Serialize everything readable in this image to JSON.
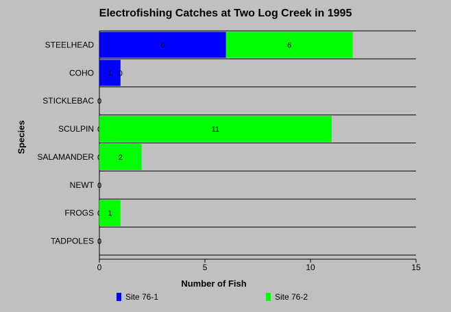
{
  "chart_data": {
    "type": "bar",
    "orientation": "horizontal",
    "stacked": true,
    "title": "Electrofishing Catches at Two Log Creek in 1995",
    "xlabel": "Number of Fish",
    "ylabel": "Species",
    "categories": [
      "STEELHEAD",
      "COHO",
      "STICKLEBAC",
      "SCULPIN",
      "SALAMANDER",
      "NEWT",
      "FROGS",
      "TADPOLES"
    ],
    "series": [
      {
        "name": "Site 76-1",
        "color": "#0000ff",
        "values": [
          6,
          1,
          0,
          0,
          0,
          0,
          0,
          0
        ]
      },
      {
        "name": "Site 76-2",
        "color": "#00ff00",
        "values": [
          6,
          0,
          0,
          11,
          2,
          0,
          1,
          0
        ]
      }
    ],
    "xlim": [
      0,
      15
    ],
    "xticks": [
      0,
      5,
      10,
      15
    ],
    "grid": true,
    "legend_position": "bottom"
  }
}
